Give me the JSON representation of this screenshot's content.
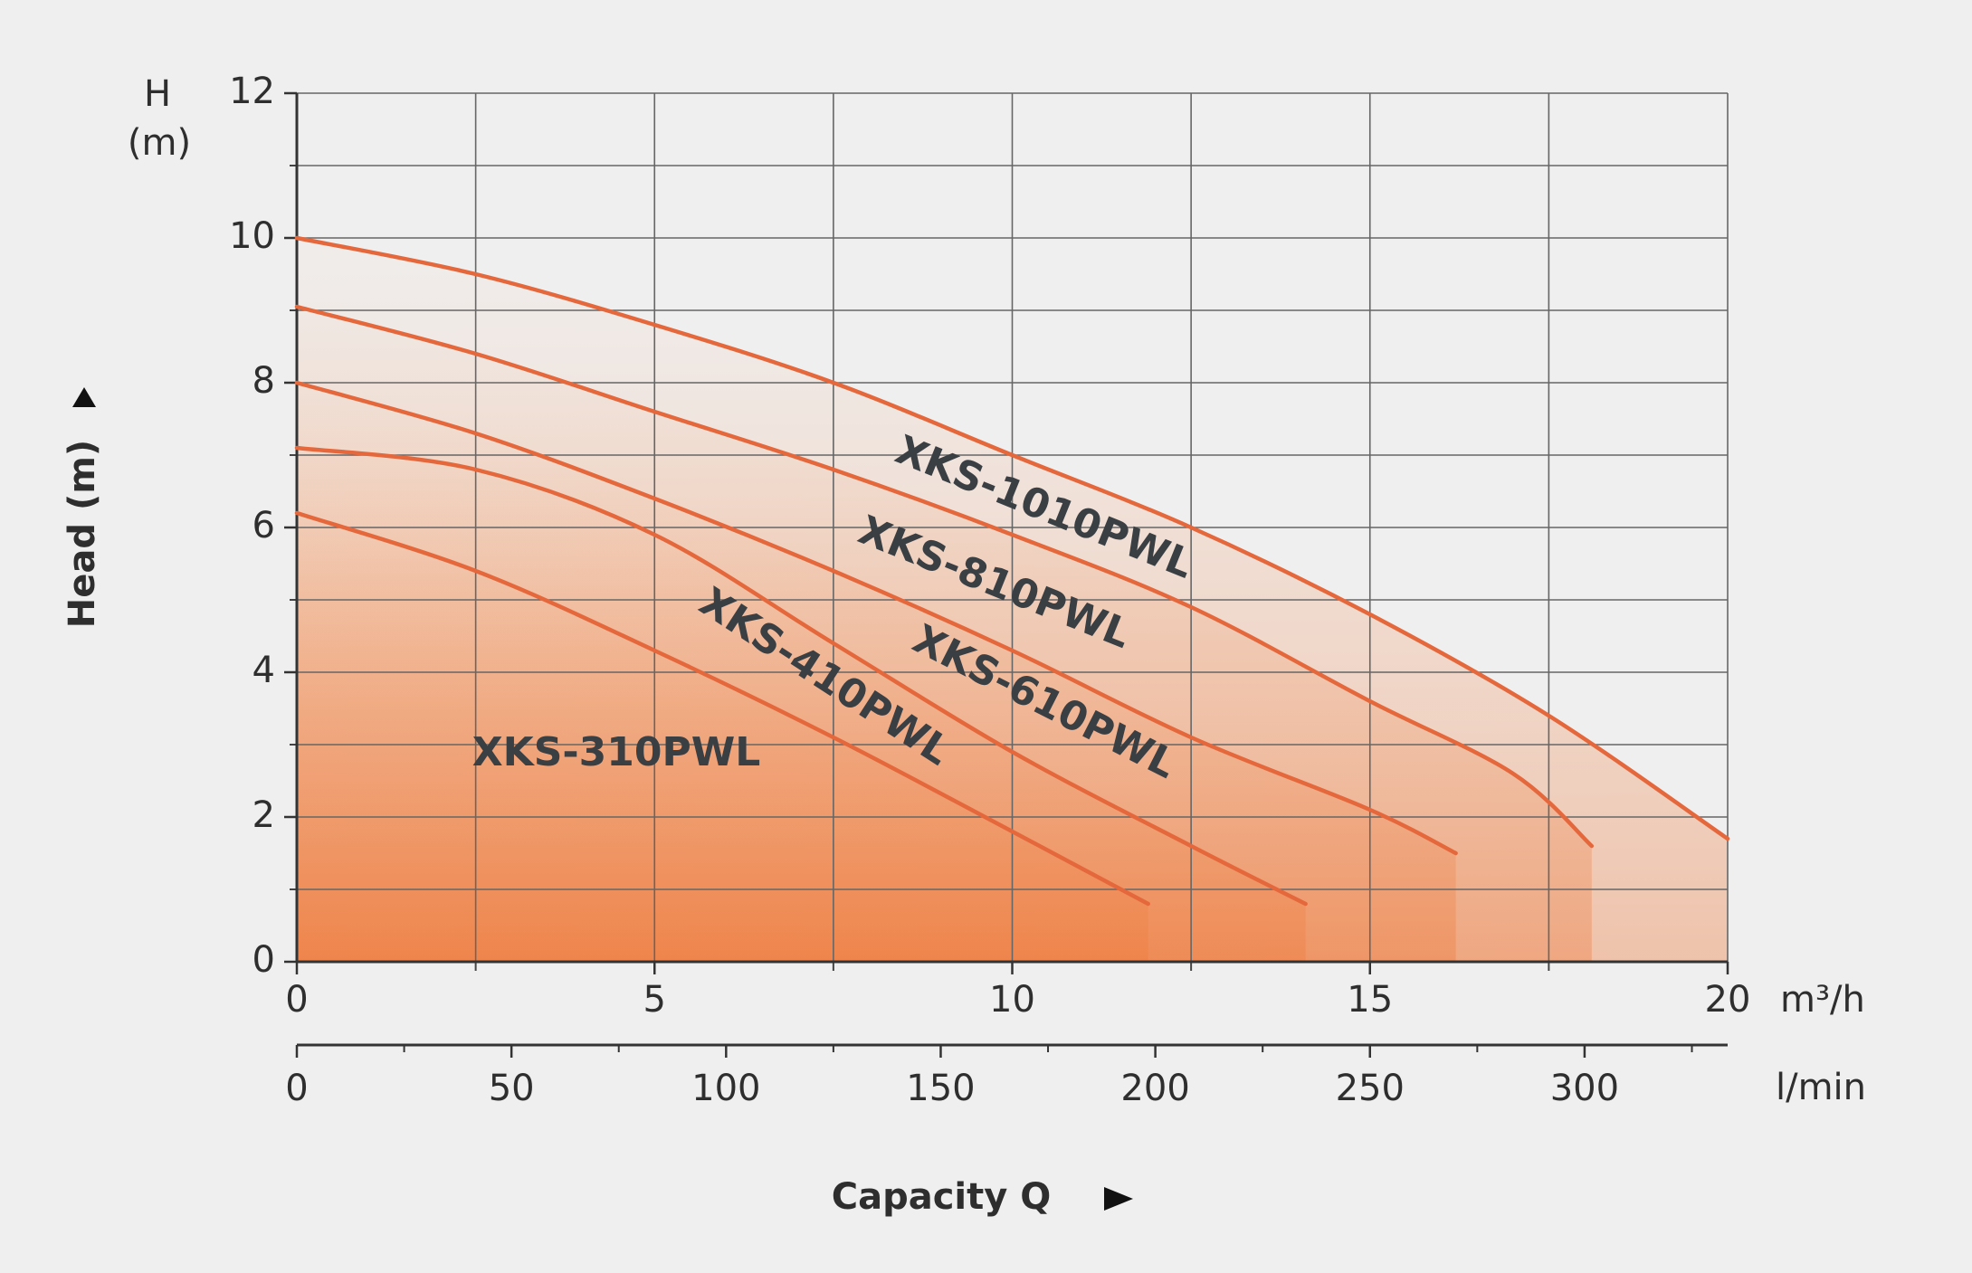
{
  "chart_data": {
    "type": "line",
    "y_label_top": "H",
    "y_label_unit": "(m)",
    "y_title": "Head (m)",
    "x_title": "Capacity Q",
    "x_unit": "m³/h",
    "x2_unit": "l/min",
    "xlim": [
      0,
      20
    ],
    "xticks": [
      0,
      5,
      10,
      15,
      20
    ],
    "x_grid": [
      2.5,
      7.5,
      12.5,
      17.5
    ],
    "ylim": [
      0,
      12
    ],
    "yticks": [
      0,
      2,
      4,
      6,
      8,
      10,
      12
    ],
    "y_grid": [
      1,
      3,
      5,
      7,
      9,
      11
    ],
    "x2lim": [
      0,
      333.33
    ],
    "x2ticks": [
      0,
      50,
      100,
      150,
      200,
      250,
      300
    ],
    "x2_minor": [
      25,
      75,
      125,
      175,
      225,
      275,
      325
    ],
    "grid": true,
    "series": [
      {
        "name": "XKS-1010PWL",
        "color": "#e4683c",
        "x": [
          0,
          2.5,
          5,
          7.5,
          10,
          12.5,
          15,
          17.5,
          20
        ],
        "values": [
          10,
          9.5,
          8.8,
          8.0,
          7.0,
          6.0,
          4.8,
          3.4,
          1.7
        ]
      },
      {
        "name": "XKS-810PWL",
        "color": "#e4683c",
        "x": [
          0,
          2.5,
          5,
          7.5,
          10,
          12.5,
          15,
          17,
          18.1
        ],
        "values": [
          9.05,
          8.4,
          7.6,
          6.8,
          5.9,
          4.9,
          3.6,
          2.6,
          1.6
        ]
      },
      {
        "name": "XKS-610PWL",
        "color": "#e4683c",
        "x": [
          0,
          2.5,
          5,
          7.5,
          10,
          12.5,
          15,
          16.2
        ],
        "values": [
          8.0,
          7.3,
          6.4,
          5.4,
          4.3,
          3.1,
          2.1,
          1.5
        ]
      },
      {
        "name": "XKS-410PWL",
        "color": "#e4683c",
        "x": [
          0,
          2.5,
          5,
          7.5,
          10,
          12.5,
          14.1
        ],
        "values": [
          7.1,
          6.8,
          5.9,
          4.4,
          2.9,
          1.6,
          0.8
        ]
      },
      {
        "name": "XKS-310PWL",
        "color": "#e4683c",
        "x": [
          0,
          2.5,
          5,
          7.5,
          10,
          11.9
        ],
        "values": [
          6.2,
          5.4,
          4.3,
          3.1,
          1.8,
          0.8
        ]
      }
    ]
  }
}
